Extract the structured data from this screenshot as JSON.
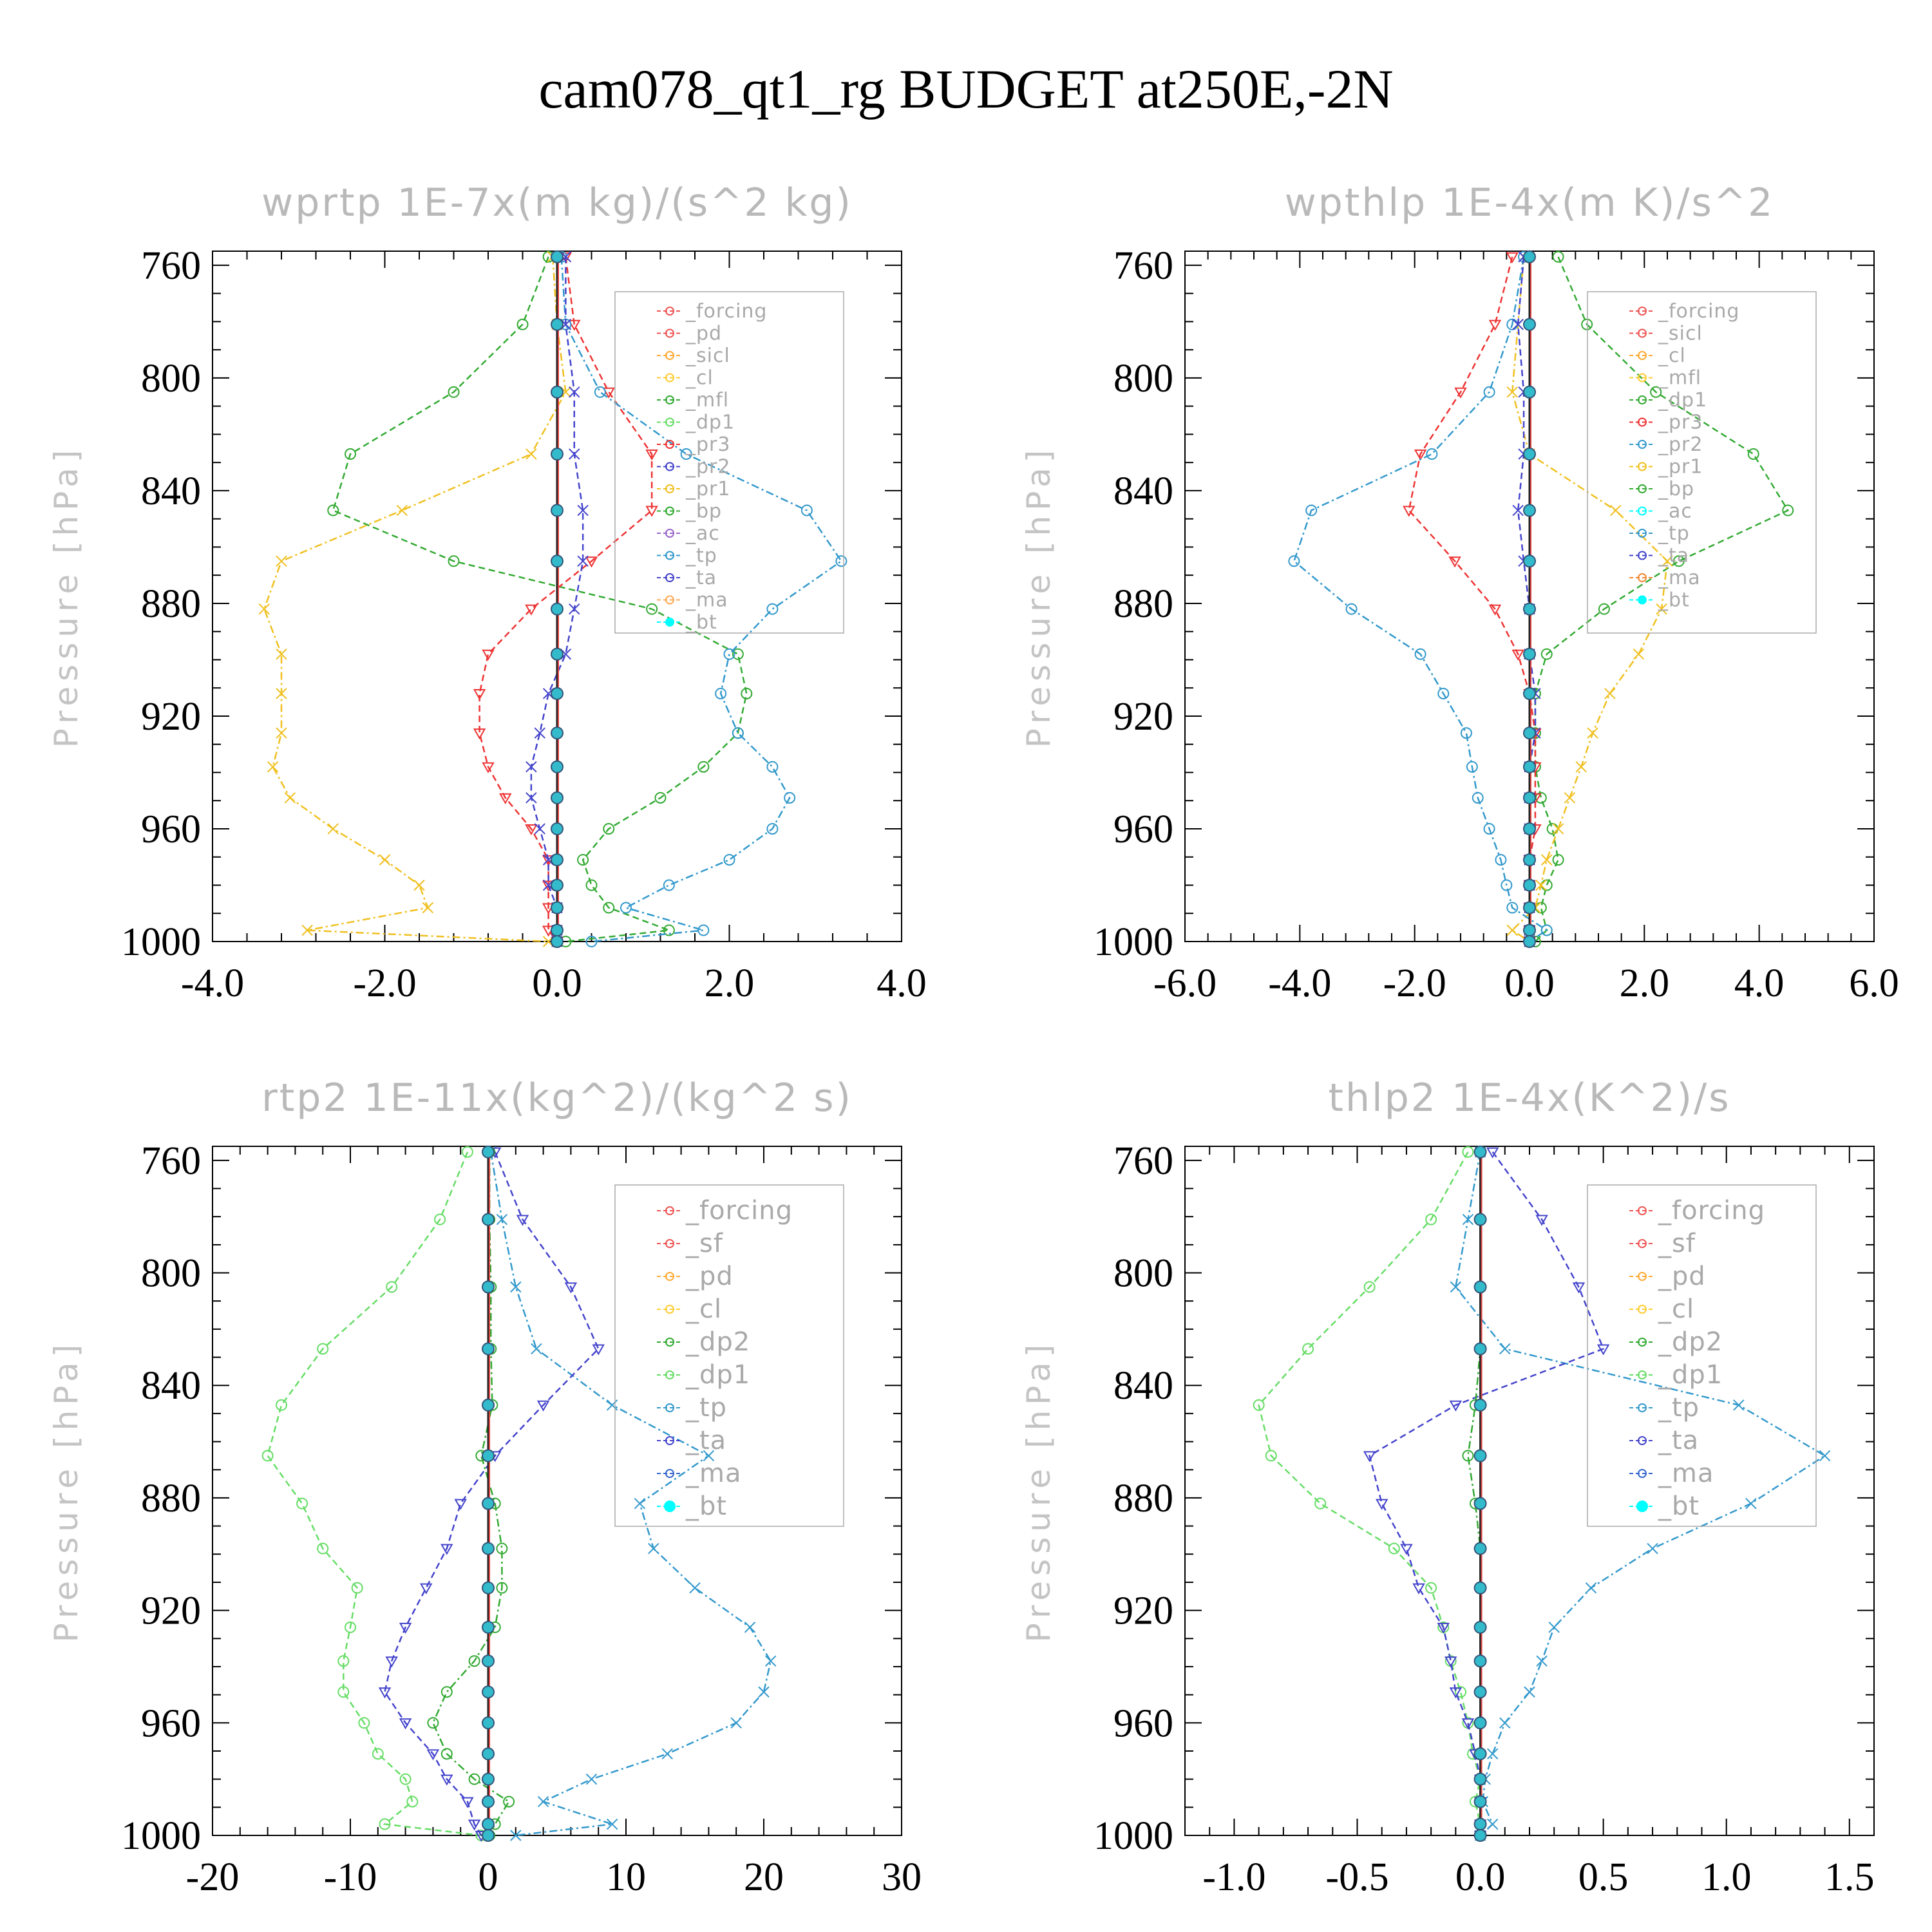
{
  "title": "cam078_qt1_rg  BUDGET at250E,-2N",
  "chart_data": [
    {
      "type": "line",
      "title": "wprtp   1E-7x(m kg)/(s^2 kg)",
      "ylabel": "Pressure [hPa]",
      "xlim": [
        -4,
        4
      ],
      "xticks": [
        "-4.0",
        "-2.0",
        "0.0",
        "2.0",
        "4.0"
      ],
      "ylim": [
        1000,
        755
      ],
      "yticks": [
        "760",
        "800",
        "840",
        "880",
        "920",
        "960",
        "1000"
      ],
      "pressure": [
        757,
        781,
        805,
        827,
        847,
        865,
        882,
        898,
        912,
        926,
        938,
        949,
        960,
        971,
        980,
        988,
        996,
        1000
      ],
      "legend": [
        "_forcing",
        "_pd",
        "_sicl",
        "_cl",
        "_mfl",
        "_dp1",
        "_pr3",
        "_pr2",
        "_pr1",
        "_bp",
        "_ac",
        "_tp",
        "_ta",
        "_ma",
        "_bt"
      ],
      "series": [
        {
          "name": "_bp",
          "color": "#33aa33",
          "values": [
            -0.1,
            -0.4,
            -1.2,
            -2.4,
            -2.6,
            -1.2,
            1.1,
            2.1,
            2.2,
            2.1,
            1.7,
            1.2,
            0.6,
            0.3,
            0.4,
            0.6,
            1.3,
            0.1
          ]
        },
        {
          "name": "_pr1",
          "color": "#f0c020",
          "values": [
            -0.05,
            0.0,
            0.1,
            -0.3,
            -1.8,
            -3.2,
            -3.4,
            -3.2,
            -3.2,
            -3.2,
            -3.3,
            -3.1,
            -2.6,
            -2.0,
            -1.6,
            -1.5,
            -2.9,
            -0.1
          ]
        },
        {
          "name": "_pr3",
          "color": "#ee3333",
          "values": [
            0.1,
            0.2,
            0.6,
            1.1,
            1.1,
            0.4,
            -0.3,
            -0.8,
            -0.9,
            -0.9,
            -0.8,
            -0.6,
            -0.3,
            -0.1,
            -0.1,
            -0.1,
            -0.1,
            0.0
          ]
        },
        {
          "name": "_tp",
          "color": "#3399cc",
          "values": [
            0.05,
            0.1,
            0.5,
            1.5,
            2.9,
            3.3,
            2.5,
            2.0,
            1.9,
            2.1,
            2.5,
            2.7,
            2.5,
            2.0,
            1.3,
            0.8,
            1.7,
            0.4
          ]
        },
        {
          "name": "_ta",
          "color": "#4444cc",
          "values": [
            0.1,
            0.1,
            0.2,
            0.2,
            0.3,
            0.3,
            0.2,
            0.1,
            -0.1,
            -0.2,
            -0.3,
            -0.3,
            -0.2,
            -0.1,
            -0.1,
            0.0,
            0.0,
            0.0
          ]
        }
      ]
    },
    {
      "type": "line",
      "title": "wpthlp   1E-4x(m K)/s^2",
      "ylabel": "Pressure [hPa]",
      "xlim": [
        -6,
        6
      ],
      "xticks": [
        "-6.0",
        "-4.0",
        "-2.0",
        "0.0",
        "2.0",
        "4.0",
        "6.0"
      ],
      "ylim": [
        1000,
        755
      ],
      "yticks": [
        "760",
        "800",
        "840",
        "880",
        "920",
        "960",
        "1000"
      ],
      "pressure": [
        757,
        781,
        805,
        827,
        847,
        865,
        882,
        898,
        912,
        926,
        938,
        949,
        960,
        971,
        980,
        988,
        996,
        1000
      ],
      "legend": [
        "_forcing",
        "_sicl",
        "_cl",
        "_mfl",
        "_dp1",
        "_pr3",
        "_pr2",
        "_pr1",
        "_bp",
        "_ac",
        "_tp",
        "_ta",
        "_ma",
        "_bt"
      ],
      "series": [
        {
          "name": "_bp",
          "color": "#33aa33",
          "values": [
            0.5,
            1.0,
            2.2,
            3.9,
            4.5,
            2.6,
            1.3,
            0.3,
            0.1,
            0.1,
            0.1,
            0.2,
            0.4,
            0.5,
            0.3,
            0.2,
            0.3,
            0.1
          ]
        },
        {
          "name": "_pr1",
          "color": "#f0c020",
          "values": [
            -0.1,
            -0.2,
            -0.3,
            0.0,
            1.5,
            2.4,
            2.3,
            1.9,
            1.4,
            1.1,
            0.9,
            0.7,
            0.5,
            0.3,
            0.2,
            0.1,
            -0.3,
            0.0
          ]
        },
        {
          "name": "_pr3",
          "color": "#ee3333",
          "values": [
            -0.3,
            -0.6,
            -1.2,
            -1.9,
            -2.1,
            -1.3,
            -0.6,
            -0.2,
            0.0,
            0.1,
            0.1,
            0.1,
            0.1,
            0.0,
            0.0,
            0.0,
            0.0,
            0.0
          ]
        },
        {
          "name": "_tp",
          "color": "#3399cc",
          "values": [
            -0.1,
            -0.3,
            -0.7,
            -1.7,
            -3.8,
            -4.1,
            -3.1,
            -1.9,
            -1.5,
            -1.1,
            -1.0,
            -0.9,
            -0.7,
            -0.5,
            -0.4,
            -0.3,
            0.3,
            0.0
          ]
        },
        {
          "name": "_ta",
          "color": "#4444cc",
          "values": [
            -0.1,
            -0.2,
            -0.1,
            -0.1,
            -0.2,
            -0.1,
            0.0,
            0.0,
            0.1,
            0.1,
            0.0,
            0.0,
            0.0,
            0.0,
            0.0,
            0.0,
            0.0,
            0.0
          ]
        }
      ]
    },
    {
      "type": "line",
      "title": "rtp2   1E-11x(kg^2)/(kg^2 s)",
      "ylabel": "Pressure [hPa]",
      "xlim": [
        -20,
        30
      ],
      "xticks": [
        "-20",
        "-10",
        "0",
        "10",
        "20",
        "30"
      ],
      "ylim": [
        1000,
        755
      ],
      "yticks": [
        "760",
        "800",
        "840",
        "880",
        "920",
        "960",
        "1000"
      ],
      "pressure": [
        757,
        781,
        805,
        827,
        847,
        865,
        882,
        898,
        912,
        926,
        938,
        949,
        960,
        971,
        980,
        988,
        996,
        1000
      ],
      "legend": [
        "_forcing",
        "_sf",
        "_pd",
        "_cl",
        "_dp2",
        "_dp1",
        "_tp",
        "_ta",
        "_ma",
        "_bt"
      ],
      "series": [
        {
          "name": "_dp1",
          "color": "#66dd66",
          "values": [
            -1.5,
            -3.5,
            -7,
            -12,
            -15,
            -16,
            -13.5,
            -12,
            -9.5,
            -10,
            -10.5,
            -10.5,
            -9,
            -8,
            -6,
            -5.5,
            -7.5,
            -0.5
          ]
        },
        {
          "name": "_tp",
          "color": "#3399cc",
          "values": [
            0.2,
            1,
            2,
            3.5,
            9,
            16,
            11,
            12,
            15,
            19,
            20.5,
            20,
            18,
            13,
            7.5,
            4,
            9,
            2
          ]
        },
        {
          "name": "_ta",
          "color": "#4444cc",
          "values": [
            0.5,
            2.5,
            6,
            8,
            4,
            0.5,
            -2,
            -3,
            -4.5,
            -6,
            -7,
            -7.5,
            -6,
            -4,
            -3,
            -1.5,
            -1,
            -0.5
          ]
        },
        {
          "name": "_dp2",
          "color": "#33aa33",
          "values": [
            0.1,
            0.1,
            0.2,
            0.2,
            0.3,
            -0.5,
            0.5,
            1,
            1,
            0.5,
            -1,
            -3,
            -4,
            -3,
            -1,
            1.5,
            0.5,
            0.1
          ]
        }
      ]
    },
    {
      "type": "line",
      "title": "thlp2   1E-4x(K^2)/s",
      "ylabel": "Pressure [hPa]",
      "xlim": [
        -1.2,
        1.6
      ],
      "xticks": [
        "-1.0",
        "-0.5",
        "0.0",
        "0.5",
        "1.0",
        "1.5"
      ],
      "ylim": [
        1000,
        755
      ],
      "yticks": [
        "760",
        "800",
        "840",
        "880",
        "920",
        "960",
        "1000"
      ],
      "pressure": [
        757,
        781,
        805,
        827,
        847,
        865,
        882,
        898,
        912,
        926,
        938,
        949,
        960,
        971,
        980,
        988,
        996,
        1000
      ],
      "legend": [
        "_forcing",
        "_sf",
        "_pd",
        "_cl",
        "_dp2",
        "_dp1",
        "_tp",
        "_ta",
        "_ma",
        "_bt"
      ],
      "series": [
        {
          "name": "_dp1",
          "color": "#66dd66",
          "values": [
            -0.05,
            -0.2,
            -0.45,
            -0.7,
            -0.9,
            -0.85,
            -0.65,
            -0.35,
            -0.2,
            -0.15,
            -0.12,
            -0.08,
            -0.05,
            -0.03,
            0.0,
            -0.02,
            0.0,
            0.0
          ]
        },
        {
          "name": "_tp",
          "color": "#3399cc",
          "values": [
            0.0,
            -0.05,
            -0.1,
            0.1,
            1.05,
            1.4,
            1.1,
            0.7,
            0.45,
            0.3,
            0.25,
            0.2,
            0.1,
            0.05,
            0.02,
            0.01,
            0.05,
            0.0
          ]
        },
        {
          "name": "_ta",
          "color": "#4444cc",
          "values": [
            0.05,
            0.25,
            0.4,
            0.5,
            -0.1,
            -0.45,
            -0.4,
            -0.3,
            -0.25,
            -0.15,
            -0.12,
            -0.1,
            -0.05,
            -0.02,
            0.0,
            0.0,
            0.0,
            0.0
          ]
        },
        {
          "name": "_dp2",
          "color": "#33aa33",
          "values": [
            0.0,
            0.0,
            0.0,
            0.0,
            -0.02,
            -0.05,
            -0.02,
            0.0,
            0.0,
            0.0,
            0.0,
            0.0,
            0.0,
            0.0,
            0.0,
            0.0,
            0.0,
            0.0
          ]
        }
      ]
    }
  ]
}
